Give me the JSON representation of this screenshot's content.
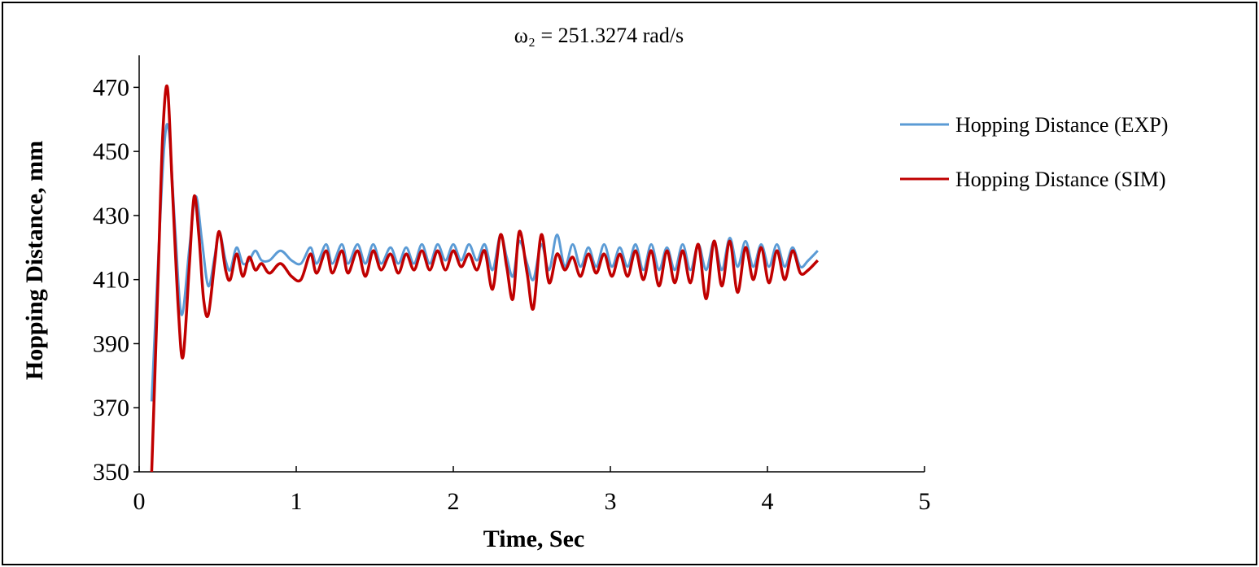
{
  "chart_data": {
    "type": "line",
    "title": "ω₂ = 251.3274 rad/s",
    "xlabel": "Time, Sec",
    "ylabel": "Hopping Distance, mm",
    "xlim": [
      0,
      5
    ],
    "ylim": [
      350,
      480
    ],
    "x_ticks": [
      0,
      1,
      2,
      3,
      4,
      5
    ],
    "y_ticks": [
      350,
      370,
      390,
      410,
      430,
      450,
      470
    ],
    "grid": false,
    "legend_position": "right",
    "series": [
      {
        "name": "Hopping Distance (EXP)",
        "color": "#5b9bd5",
        "x": [
          0.08,
          0.12,
          0.16,
          0.19,
          0.23,
          0.27,
          0.32,
          0.36,
          0.4,
          0.44,
          0.48,
          0.51,
          0.55,
          0.58,
          0.62,
          0.66,
          0.7,
          0.74,
          0.78,
          0.83,
          0.9,
          0.97,
          1.03,
          1.09,
          1.13,
          1.19,
          1.23,
          1.29,
          1.33,
          1.39,
          1.44,
          1.49,
          1.54,
          1.6,
          1.65,
          1.7,
          1.75,
          1.8,
          1.85,
          1.9,
          1.95,
          2.0,
          2.05,
          2.1,
          2.15,
          2.2,
          2.25,
          2.3,
          2.34,
          2.38,
          2.42,
          2.47,
          2.51,
          2.56,
          2.61,
          2.66,
          2.71,
          2.76,
          2.81,
          2.86,
          2.91,
          2.96,
          3.01,
          3.06,
          3.11,
          3.16,
          3.21,
          3.26,
          3.31,
          3.36,
          3.41,
          3.46,
          3.51,
          3.56,
          3.61,
          3.66,
          3.71,
          3.76,
          3.81,
          3.86,
          3.91,
          3.96,
          4.01,
          4.06,
          4.11,
          4.16,
          4.21,
          4.26,
          4.32
        ],
        "values": [
          372,
          415,
          452,
          456,
          425,
          399,
          420,
          436,
          422,
          408,
          417,
          425,
          416,
          413,
          420,
          415,
          416,
          419,
          416,
          416,
          419,
          416,
          415,
          420,
          415,
          421,
          415,
          421,
          415,
          421,
          415,
          421,
          415,
          420,
          415,
          420,
          415,
          421,
          415,
          421,
          416,
          421,
          416,
          421,
          416,
          421,
          413,
          424,
          417,
          411,
          422,
          415,
          410,
          421,
          413,
          424,
          414,
          421,
          414,
          420,
          414,
          421,
          414,
          420,
          414,
          421,
          413,
          421,
          413,
          420,
          413,
          421,
          413,
          421,
          413,
          422,
          413,
          423,
          414,
          422,
          414,
          421,
          414,
          421,
          414,
          420,
          414,
          416,
          419
        ]
      },
      {
        "name": "Hopping Distance (SIM)",
        "color": "#c00000",
        "x": [
          0.08,
          0.12,
          0.15,
          0.18,
          0.21,
          0.25,
          0.28,
          0.32,
          0.35,
          0.38,
          0.41,
          0.44,
          0.48,
          0.51,
          0.55,
          0.58,
          0.62,
          0.66,
          0.7,
          0.74,
          0.78,
          0.83,
          0.9,
          0.97,
          1.03,
          1.09,
          1.13,
          1.19,
          1.23,
          1.29,
          1.33,
          1.39,
          1.44,
          1.49,
          1.54,
          1.6,
          1.65,
          1.7,
          1.75,
          1.8,
          1.85,
          1.9,
          1.95,
          2.0,
          2.05,
          2.1,
          2.15,
          2.2,
          2.25,
          2.3,
          2.34,
          2.38,
          2.42,
          2.47,
          2.51,
          2.56,
          2.61,
          2.66,
          2.71,
          2.76,
          2.81,
          2.86,
          2.91,
          2.96,
          3.01,
          3.06,
          3.11,
          3.16,
          3.21,
          3.26,
          3.31,
          3.36,
          3.41,
          3.46,
          3.51,
          3.56,
          3.61,
          3.66,
          3.71,
          3.76,
          3.81,
          3.86,
          3.91,
          3.96,
          4.01,
          4.06,
          4.11,
          4.16,
          4.21,
          4.26,
          4.32
        ],
        "values": [
          350,
          410,
          455,
          470,
          440,
          400,
          386,
          415,
          436,
          424,
          404,
          399,
          415,
          425,
          413,
          410,
          418,
          411,
          417,
          413,
          415,
          412,
          415,
          411,
          410,
          418,
          412,
          419,
          412,
          419,
          412,
          419,
          411,
          419,
          413,
          418,
          412,
          418,
          413,
          419,
          413,
          419,
          413,
          419,
          414,
          418,
          413,
          419,
          407,
          424,
          414,
          404,
          425,
          412,
          401,
          424,
          409,
          418,
          413,
          417,
          411,
          418,
          412,
          418,
          411,
          418,
          411,
          419,
          410,
          419,
          408,
          419,
          409,
          419,
          409,
          421,
          404,
          422,
          408,
          422,
          406,
          420,
          410,
          420,
          409,
          419,
          410,
          419,
          412,
          413,
          416
        ]
      }
    ]
  }
}
